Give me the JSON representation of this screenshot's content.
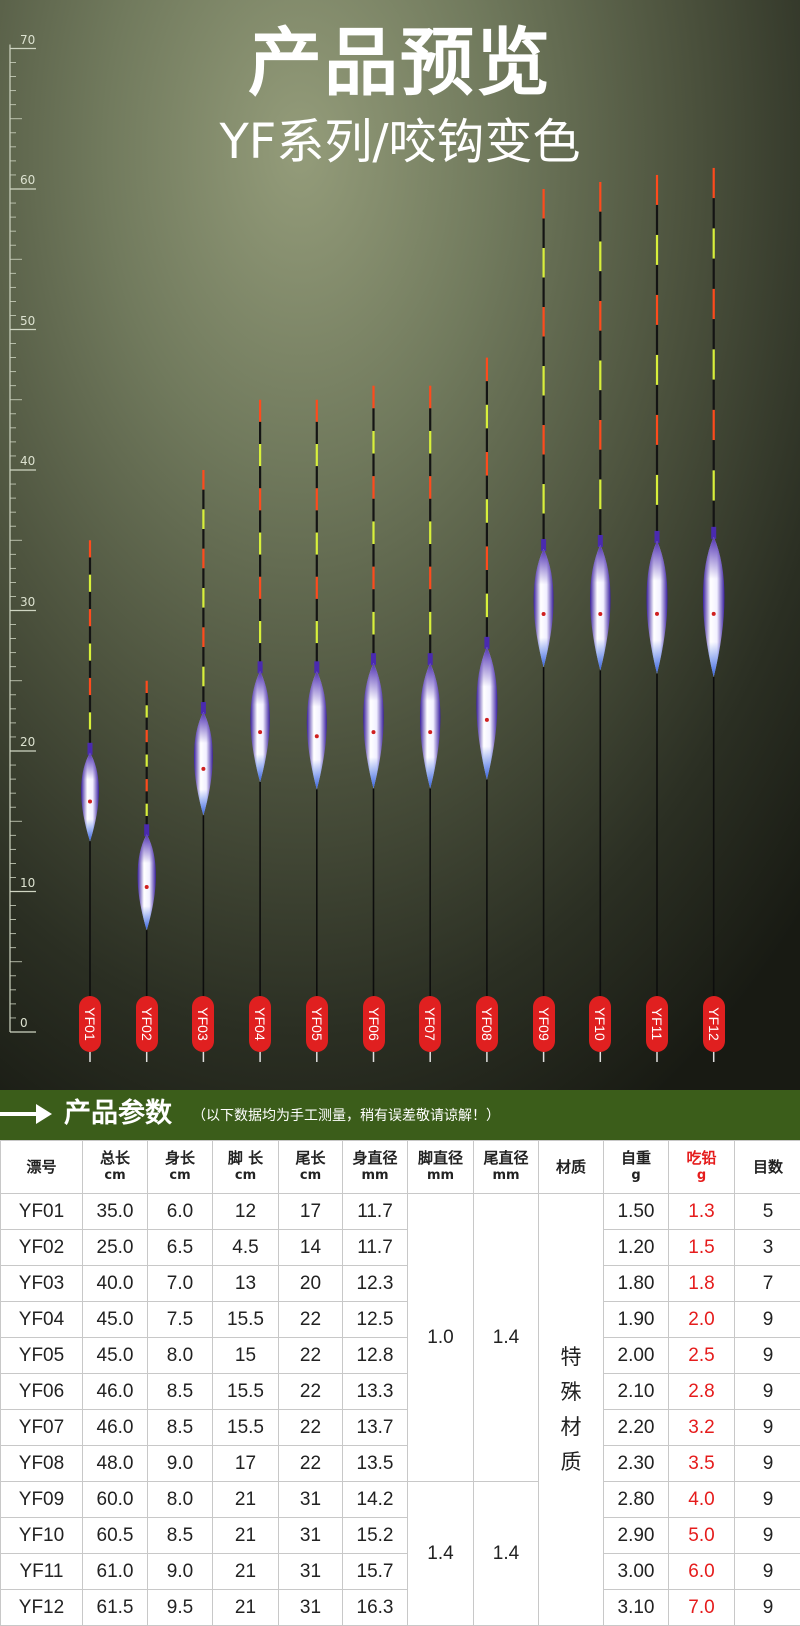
{
  "hero": {
    "title": "产品预览",
    "subtitle": "YF系列/咬钩变色",
    "ruler_labels": [
      "70",
      "60",
      "50",
      "40",
      "30",
      "20",
      "10",
      "0"
    ],
    "ruler_max_cm": 70,
    "floats": [
      {
        "model": "YF01",
        "total_cm": 35.0,
        "body_cm": 6.0
      },
      {
        "model": "YF02",
        "total_cm": 25.0,
        "body_cm": 6.5
      },
      {
        "model": "YF03",
        "total_cm": 40.0,
        "body_cm": 7.0
      },
      {
        "model": "YF04",
        "total_cm": 45.0,
        "body_cm": 7.5
      },
      {
        "model": "YF05",
        "total_cm": 45.0,
        "body_cm": 8.0
      },
      {
        "model": "YF06",
        "total_cm": 46.0,
        "body_cm": 8.5
      },
      {
        "model": "YF07",
        "total_cm": 46.0,
        "body_cm": 8.5
      },
      {
        "model": "YF08",
        "total_cm": 48.0,
        "body_cm": 9.0
      },
      {
        "model": "YF09",
        "total_cm": 60.0,
        "body_cm": 8.0
      },
      {
        "model": "YF10",
        "total_cm": 60.5,
        "body_cm": 8.5
      },
      {
        "model": "YF11",
        "total_cm": 61.0,
        "body_cm": 9.0
      },
      {
        "model": "YF12",
        "total_cm": 61.5,
        "body_cm": 9.5
      }
    ],
    "colors": {
      "tip_red": "#ff4a1c",
      "tip_yellow": "#d8f03a",
      "body_purple": "#4a2ab0",
      "label_red": "#e02020"
    }
  },
  "params": {
    "title": "产品参数",
    "note": "（以下数据均为手工测量，稍有误差敬请谅解！）",
    "headers": [
      {
        "name": "漂号",
        "unit": ""
      },
      {
        "name": "总长",
        "unit": "cm"
      },
      {
        "name": "身长",
        "unit": "cm"
      },
      {
        "name": "脚 长",
        "unit": "cm"
      },
      {
        "name": "尾长",
        "unit": "cm"
      },
      {
        "name": "身直径",
        "unit": "mm"
      },
      {
        "name": "脚直径",
        "unit": "mm"
      },
      {
        "name": "尾直径",
        "unit": "mm"
      },
      {
        "name": "材质",
        "unit": ""
      },
      {
        "name": "自重",
        "unit": "g"
      },
      {
        "name": "吃铅",
        "unit": "g"
      },
      {
        "name": "目数",
        "unit": ""
      }
    ],
    "rows": [
      [
        "YF01",
        "35.0",
        "6.0",
        "12",
        "17",
        "11.7",
        "1.50",
        "1.3",
        "5"
      ],
      [
        "YF02",
        "25.0",
        "6.5",
        "4.5",
        "14",
        "11.7",
        "1.20",
        "1.5",
        "3"
      ],
      [
        "YF03",
        "40.0",
        "7.0",
        "13",
        "20",
        "12.3",
        "1.80",
        "1.8",
        "7"
      ],
      [
        "YF04",
        "45.0",
        "7.5",
        "15.5",
        "22",
        "12.5",
        "1.90",
        "2.0",
        "9"
      ],
      [
        "YF05",
        "45.0",
        "8.0",
        "15",
        "22",
        "12.8",
        "2.00",
        "2.5",
        "9"
      ],
      [
        "YF06",
        "46.0",
        "8.5",
        "15.5",
        "22",
        "13.3",
        "2.10",
        "2.8",
        "9"
      ],
      [
        "YF07",
        "46.0",
        "8.5",
        "15.5",
        "22",
        "13.7",
        "2.20",
        "3.2",
        "9"
      ],
      [
        "YF08",
        "48.0",
        "9.0",
        "17",
        "22",
        "13.5",
        "2.30",
        "3.5",
        "9"
      ],
      [
        "YF09",
        "60.0",
        "8.0",
        "21",
        "31",
        "14.2",
        "2.80",
        "4.0",
        "9"
      ],
      [
        "YF10",
        "60.5",
        "8.5",
        "21",
        "31",
        "15.2",
        "2.90",
        "5.0",
        "9"
      ],
      [
        "YF11",
        "61.0",
        "9.0",
        "21",
        "31",
        "15.7",
        "3.00",
        "6.0",
        "9"
      ],
      [
        "YF12",
        "61.5",
        "9.5",
        "21",
        "31",
        "16.3",
        "3.10",
        "7.0",
        "9"
      ]
    ],
    "foot_diameter_groups": [
      "1.0",
      "1.4"
    ],
    "tail_diameter_groups": [
      "1.4",
      "1.4"
    ],
    "material": [
      "特",
      "殊",
      "材",
      "质"
    ],
    "colors": {
      "band_green": "#3b5d1a",
      "lead_red": "#e51c1c"
    }
  }
}
